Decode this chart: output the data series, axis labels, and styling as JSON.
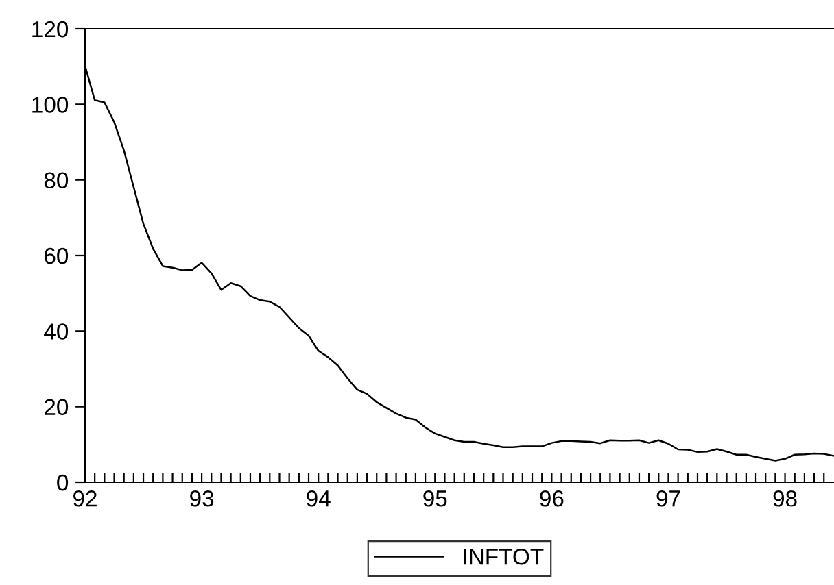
{
  "chart_data": {
    "type": "line",
    "x": [
      92.0,
      92.0833,
      92.1667,
      92.25,
      92.3333,
      92.4167,
      92.5,
      92.5833,
      92.6667,
      92.75,
      92.8333,
      92.9167,
      93.0,
      93.0833,
      93.1667,
      93.25,
      93.3333,
      93.4167,
      93.5,
      93.5833,
      93.6667,
      93.75,
      93.8333,
      93.9167,
      94.0,
      94.0833,
      94.1667,
      94.25,
      94.3333,
      94.4167,
      94.5,
      94.5833,
      94.6667,
      94.75,
      94.8333,
      94.9167,
      95.0,
      95.0833,
      95.1667,
      95.25,
      95.3333,
      95.4167,
      95.5,
      95.5833,
      95.6667,
      95.75,
      95.8333,
      95.9167,
      96.0,
      96.0833,
      96.1667,
      96.25,
      96.3333,
      96.4167,
      96.5,
      96.5833,
      96.6667,
      96.75,
      96.8333,
      96.9167,
      97.0,
      97.0833,
      97.1667,
      97.25,
      97.3333,
      97.4167,
      97.5,
      97.5833,
      97.6667,
      97.75,
      97.8333,
      97.9167,
      98.0,
      98.0833,
      98.1667,
      98.25,
      98.3333,
      98.4167
    ],
    "series": [
      {
        "name": "INFTOT",
        "color": "#000000",
        "values": [
          110.2,
          101.1,
          100.5,
          95.3,
          87.8,
          78.1,
          68.4,
          61.8,
          57.2,
          56.8,
          56.1,
          56.2,
          58.1,
          55.3,
          50.9,
          52.7,
          51.9,
          49.3,
          48.2,
          47.8,
          46.4,
          43.6,
          40.8,
          38.8,
          34.8,
          33.1,
          30.9,
          27.5,
          24.5,
          23.4,
          21.2,
          19.7,
          18.2,
          17.1,
          16.6,
          14.5,
          12.9,
          12.0,
          11.1,
          10.7,
          10.7,
          10.2,
          9.8,
          9.3,
          9.3,
          9.5,
          9.5,
          9.5,
          10.4,
          10.9,
          10.9,
          10.8,
          10.7,
          10.3,
          11.1,
          11.0,
          11.0,
          11.1,
          10.4,
          11.1,
          10.2,
          8.7,
          8.6,
          8.0,
          8.1,
          8.8,
          8.1,
          7.3,
          7.3,
          6.7,
          6.2,
          5.7,
          6.2,
          7.3,
          7.4,
          7.6,
          7.5,
          7.0
        ]
      }
    ],
    "xlim": [
      92.0,
      98.42
    ],
    "ylim": [
      0,
      120
    ],
    "yticks": [
      0,
      20,
      40,
      60,
      80,
      100,
      120
    ],
    "xticks": [
      {
        "value": 92,
        "label": "92"
      },
      {
        "value": 92.0833,
        "label": null
      },
      {
        "value": 92.1667,
        "label": null
      },
      {
        "value": 92.25,
        "label": null
      },
      {
        "value": 92.3333,
        "label": null
      },
      {
        "value": 92.4167,
        "label": null
      },
      {
        "value": 92.5,
        "label": null
      },
      {
        "value": 92.5833,
        "label": null
      },
      {
        "value": 92.6667,
        "label": null
      },
      {
        "value": 92.75,
        "label": null
      },
      {
        "value": 92.8333,
        "label": null
      },
      {
        "value": 92.9167,
        "label": null
      },
      {
        "value": 93,
        "label": "93"
      },
      {
        "value": 93.0833,
        "label": null
      },
      {
        "value": 93.1667,
        "label": null
      },
      {
        "value": 93.25,
        "label": null
      },
      {
        "value": 93.3333,
        "label": null
      },
      {
        "value": 93.4167,
        "label": null
      },
      {
        "value": 93.5,
        "label": null
      },
      {
        "value": 93.5833,
        "label": null
      },
      {
        "value": 93.6667,
        "label": null
      },
      {
        "value": 93.75,
        "label": null
      },
      {
        "value": 93.8333,
        "label": null
      },
      {
        "value": 93.9167,
        "label": null
      },
      {
        "value": 94,
        "label": "94"
      },
      {
        "value": 94.0833,
        "label": null
      },
      {
        "value": 94.1667,
        "label": null
      },
      {
        "value": 94.25,
        "label": null
      },
      {
        "value": 94.3333,
        "label": null
      },
      {
        "value": 94.4167,
        "label": null
      },
      {
        "value": 94.5,
        "label": null
      },
      {
        "value": 94.5833,
        "label": null
      },
      {
        "value": 94.6667,
        "label": null
      },
      {
        "value": 94.75,
        "label": null
      },
      {
        "value": 94.8333,
        "label": null
      },
      {
        "value": 94.9167,
        "label": null
      },
      {
        "value": 95,
        "label": "95"
      },
      {
        "value": 95.0833,
        "label": null
      },
      {
        "value": 95.1667,
        "label": null
      },
      {
        "value": 95.25,
        "label": null
      },
      {
        "value": 95.3333,
        "label": null
      },
      {
        "value": 95.4167,
        "label": null
      },
      {
        "value": 95.5,
        "label": null
      },
      {
        "value": 95.5833,
        "label": null
      },
      {
        "value": 95.6667,
        "label": null
      },
      {
        "value": 95.75,
        "label": null
      },
      {
        "value": 95.8333,
        "label": null
      },
      {
        "value": 95.9167,
        "label": null
      },
      {
        "value": 96,
        "label": "96"
      },
      {
        "value": 96.0833,
        "label": null
      },
      {
        "value": 96.1667,
        "label": null
      },
      {
        "value": 96.25,
        "label": null
      },
      {
        "value": 96.3333,
        "label": null
      },
      {
        "value": 96.4167,
        "label": null
      },
      {
        "value": 96.5,
        "label": null
      },
      {
        "value": 96.5833,
        "label": null
      },
      {
        "value": 96.6667,
        "label": null
      },
      {
        "value": 96.75,
        "label": null
      },
      {
        "value": 96.8333,
        "label": null
      },
      {
        "value": 96.9167,
        "label": null
      },
      {
        "value": 97,
        "label": "97"
      },
      {
        "value": 97.0833,
        "label": null
      },
      {
        "value": 97.1667,
        "label": null
      },
      {
        "value": 97.25,
        "label": null
      },
      {
        "value": 97.3333,
        "label": null
      },
      {
        "value": 97.4167,
        "label": null
      },
      {
        "value": 97.5,
        "label": null
      },
      {
        "value": 97.5833,
        "label": null
      },
      {
        "value": 97.6667,
        "label": null
      },
      {
        "value": 97.75,
        "label": null
      },
      {
        "value": 97.8333,
        "label": null
      },
      {
        "value": 97.9167,
        "label": null
      },
      {
        "value": 98,
        "label": "98"
      },
      {
        "value": 98.0833,
        "label": null
      },
      {
        "value": 98.1667,
        "label": null
      },
      {
        "value": 98.25,
        "label": null
      },
      {
        "value": 98.3333,
        "label": null
      }
    ],
    "grid": false,
    "legend": "bottom",
    "marker": "none",
    "line_style": "solid"
  }
}
